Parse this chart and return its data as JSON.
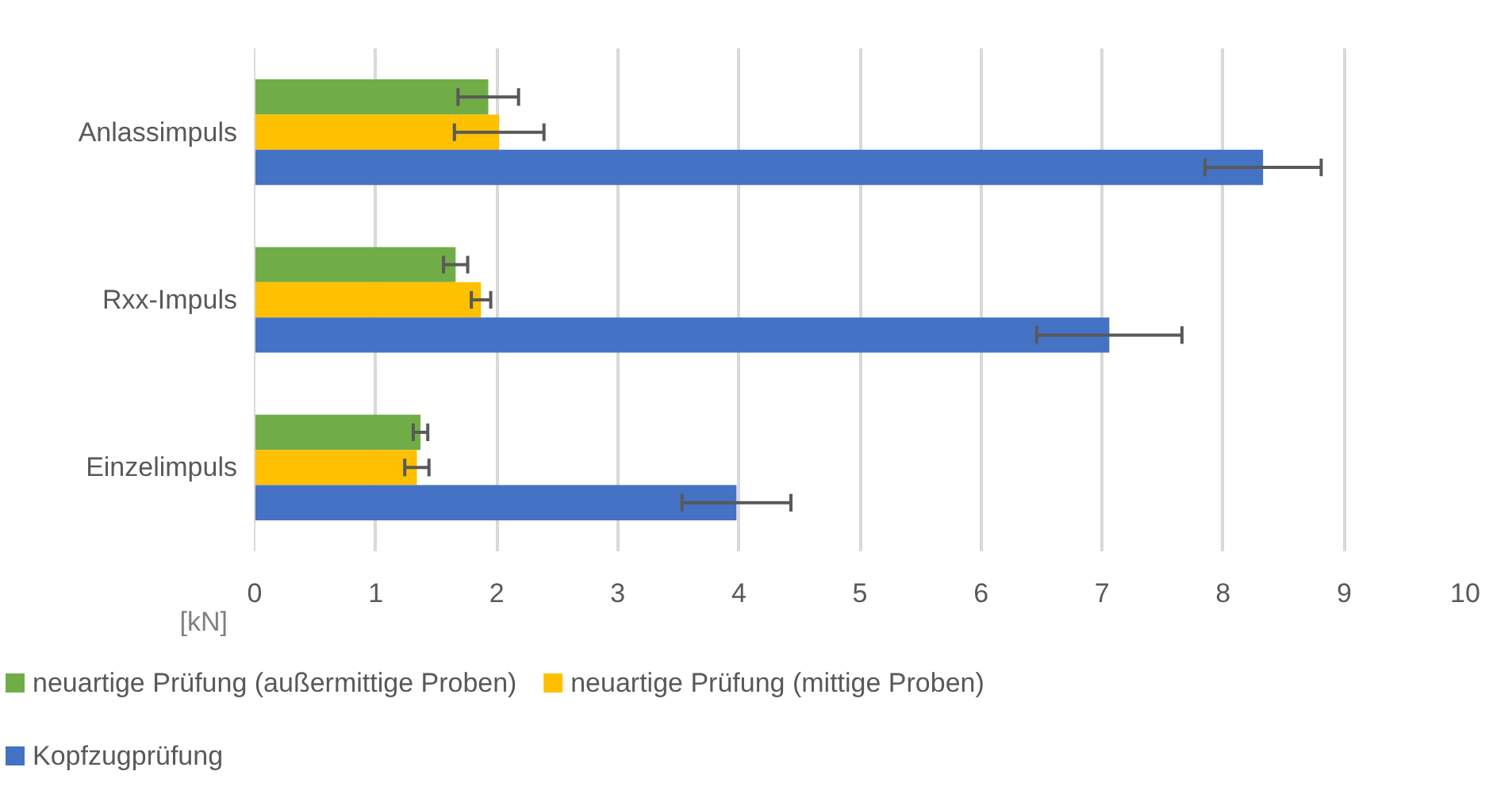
{
  "chart_data": {
    "type": "bar",
    "orientation": "horizontal",
    "xlabel": "[kN]",
    "categories": [
      "Anlassimpuls",
      "Rxx-Impuls",
      "Einzelimpuls"
    ],
    "series": [
      {
        "name": "neuartige Prüfung (außermittige Proben)",
        "color": "#70ad47",
        "values": [
          1.93,
          1.66,
          1.37
        ],
        "errors": [
          0.25,
          0.1,
          0.06
        ]
      },
      {
        "name": "neuartige Prüfung (mittige Proben)",
        "color": "#ffc000",
        "values": [
          2.02,
          1.87,
          1.34
        ],
        "errors": [
          0.37,
          0.08,
          0.1
        ]
      },
      {
        "name": "Kopfzugprüfung",
        "color": "#4472c4",
        "values": [
          8.33,
          7.06,
          3.98
        ],
        "errors": [
          0.48,
          0.6,
          0.45
        ]
      }
    ],
    "xlim": [
      0,
      10
    ],
    "xticks": [
      0,
      1,
      2,
      3,
      4,
      5,
      6,
      7,
      8,
      9,
      10
    ],
    "grid": "x",
    "legend": "bottom"
  }
}
